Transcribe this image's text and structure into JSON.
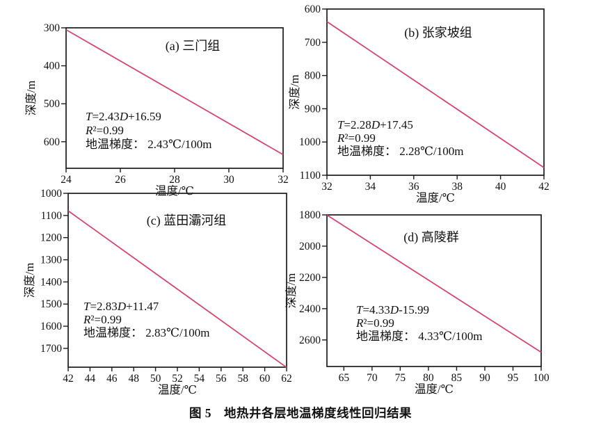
{
  "caption": "图 5　地热井各层地温梯度线性回归结果",
  "colors": {
    "background": "#ffffff",
    "axis": "#1b1b1b",
    "text": "#111111",
    "regression_line": "#d4466e"
  },
  "chart_data": [
    {
      "id": "a",
      "type": "line",
      "title": "(a) 三门组",
      "xlabel": "温度/℃",
      "ylabel": "深度/m",
      "xlim": [
        24,
        32
      ],
      "x_ticks": [
        24,
        26,
        28,
        30,
        32
      ],
      "ylim": [
        300,
        670
      ],
      "y_ticks": [
        300,
        400,
        500,
        600
      ],
      "y_axis_note": "depth increases downward, top of axis = 300 m",
      "grid": false,
      "series": [
        {
          "name": "回归线",
          "x": [
            24,
            32
          ],
          "depth_m": [
            305,
            634
          ]
        }
      ],
      "annotation": [
        "T=2.43D+16.59",
        "R²=0.99",
        "地温梯度：  2.43℃/100m"
      ],
      "line_color": "#d4466e"
    },
    {
      "id": "b",
      "type": "line",
      "title": "(b) 张家坡组",
      "xlabel": "温度/℃",
      "ylabel": "深度/m",
      "xlim": [
        32,
        42
      ],
      "x_ticks": [
        32,
        34,
        36,
        38,
        40,
        42
      ],
      "ylim": [
        600,
        1100
      ],
      "y_ticks": [
        600,
        700,
        800,
        900,
        1000,
        1100
      ],
      "y_axis_note": "depth increases downward, top of axis = 600 m",
      "grid": false,
      "series": [
        {
          "name": "回归线",
          "x": [
            32,
            42
          ],
          "depth_m": [
            638,
            1077
          ]
        }
      ],
      "annotation": [
        "T=2.28D+17.45",
        "R²=0.99",
        "地温梯度：  2.28℃/100m"
      ],
      "line_color": "#d4466e"
    },
    {
      "id": "c",
      "type": "line",
      "title": "(c) 蓝田灞河组",
      "xlabel": "温度/℃",
      "ylabel": "深度/m",
      "xlim": [
        42,
        62
      ],
      "x_ticks": [
        42,
        44,
        46,
        48,
        50,
        52,
        54,
        56,
        58,
        60,
        62
      ],
      "ylim": [
        1000,
        1785
      ],
      "y_ticks": [
        1000,
        1100,
        1200,
        1300,
        1400,
        1500,
        1600,
        1700
      ],
      "y_axis_note": "depth increases downward, top of axis = 1000 m",
      "grid": false,
      "series": [
        {
          "name": "回归线",
          "x": [
            42,
            62
          ],
          "depth_m": [
            1079,
            1786
          ]
        }
      ],
      "annotation": [
        "T=2.83D+11.47",
        "R²=0.99",
        "地温梯度：  2.83℃/100m"
      ],
      "line_color": "#d4466e"
    },
    {
      "id": "d",
      "type": "line",
      "title": "(d) 高陵群",
      "xlabel": "温度/℃",
      "ylabel": "深度/m",
      "xlim": [
        62,
        100
      ],
      "x_ticks": [
        65,
        70,
        75,
        80,
        85,
        90,
        95,
        100
      ],
      "ylim": [
        1800,
        2770
      ],
      "y_ticks": [
        1800,
        2000,
        2200,
        2400,
        2600
      ],
      "y_axis_note": "depth increases downward, top of axis = 1800 m",
      "grid": false,
      "series": [
        {
          "name": "回归线",
          "x": [
            62,
            100
          ],
          "depth_m": [
            1801,
            2679
          ]
        }
      ],
      "annotation": [
        "T=4.33D-15.99",
        "R²=0.99",
        "地温梯度：  4.33℃/100m"
      ],
      "line_color": "#d4466e"
    }
  ]
}
